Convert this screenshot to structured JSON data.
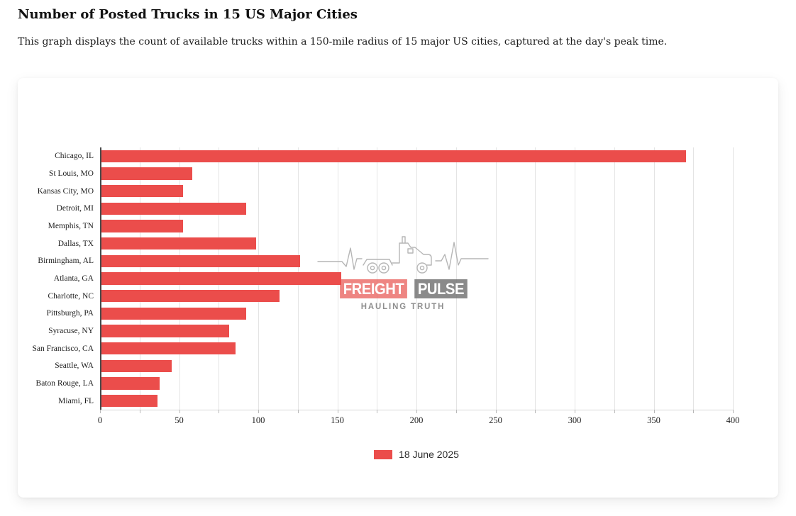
{
  "page": {
    "title": "Number of Posted Trucks in 15 US Major Cities",
    "subtitle": "This graph displays the count of available trucks within a 150-mile radius of 15 major US cities, captured at the day's peak time."
  },
  "watermark": {
    "brand_first": "FREIGHT",
    "brand_second": "PULSE",
    "tagline": "HAULING TRUTH",
    "icon": "truck-ekg-pulse-line-icon",
    "line_color": "#b3b3b3",
    "brand_first_bg": "#e85652",
    "brand_second_bg": "#707070"
  },
  "chart_data": {
    "type": "bar",
    "orientation": "horizontal",
    "categories": [
      "Chicago, IL",
      "St Louis, MO",
      "Kansas City, MO",
      "Detroit, MI",
      "Memphis, TN",
      "Dallas, TX",
      "Birmingham, AL",
      "Atlanta, GA",
      "Charlotte, NC",
      "Pittsburgh, PA",
      "Syracuse, NY",
      "San Francisco, CA",
      "Seattle, WA",
      "Baton Rouge, LA",
      "Miami, FL"
    ],
    "series": [
      {
        "name": "18 June 2025",
        "color": "#eb4d4b",
        "values": [
          370,
          58,
          52,
          92,
          52,
          98,
          126,
          152,
          113,
          92,
          81,
          85,
          45,
          37,
          36
        ]
      }
    ],
    "xlabel": "",
    "ylabel": "",
    "xlim": [
      0,
      400
    ],
    "x_tick_label_step": 50,
    "grid_step": 25,
    "grid": true,
    "legend_position": "bottom",
    "bar_color": "#eb4d4b",
    "grid_color": "#e4e4e4"
  }
}
